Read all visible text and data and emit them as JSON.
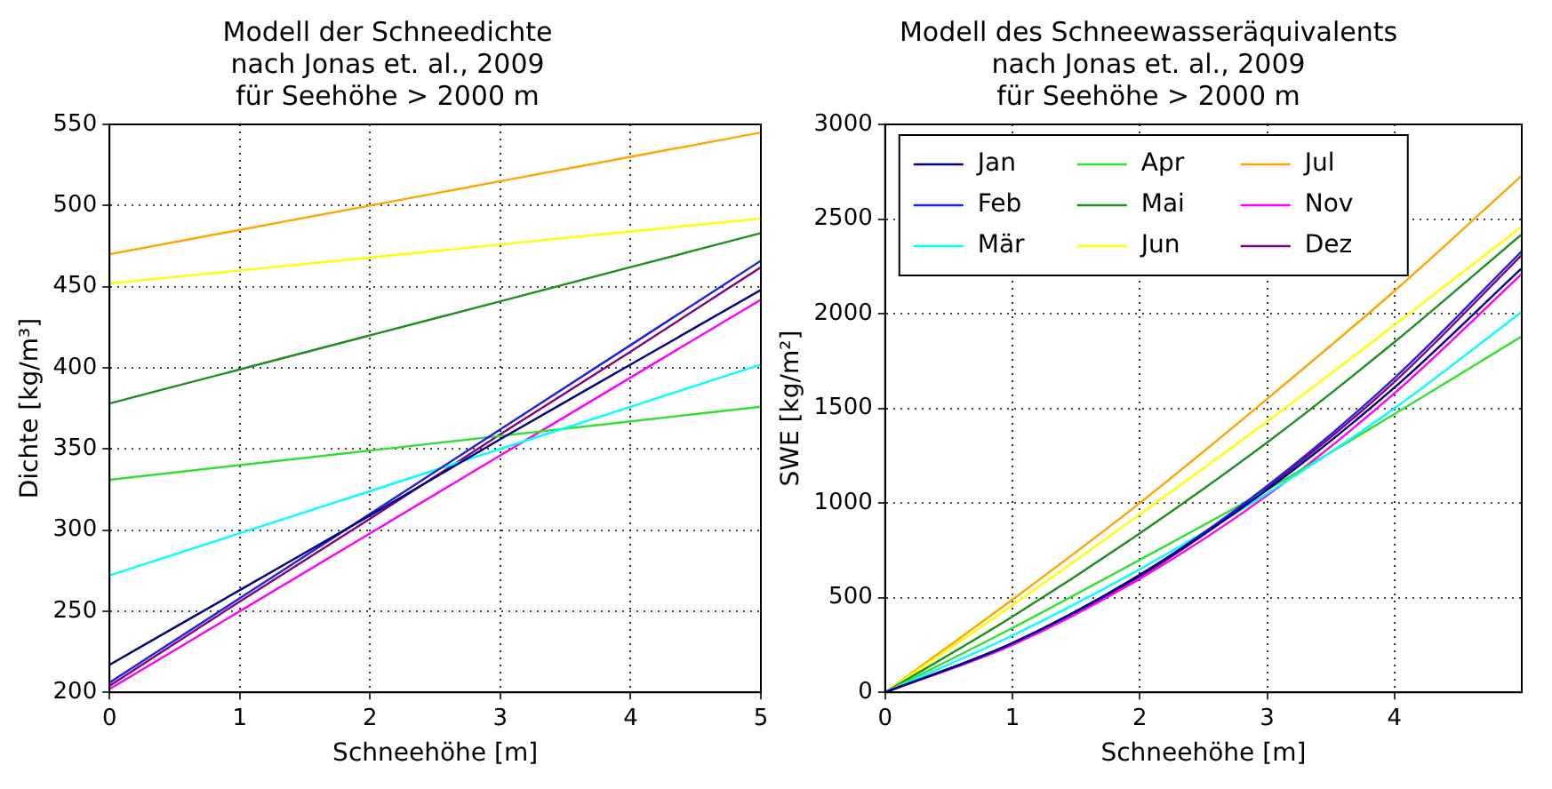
{
  "chart_data": [
    {
      "type": "line",
      "title": "Modell der Schneedichte\nnach Jonas et. al., 2009\nfür Seehöhe > 2000 m",
      "xlabel": "Schneehöhe [m]",
      "ylabel": "Dichte [kg/m³]",
      "x": [
        0,
        1,
        2,
        3,
        4,
        5
      ],
      "xlim": [
        0,
        5
      ],
      "xticks": [
        0,
        1,
        2,
        3,
        4,
        5
      ],
      "ylim": [
        200,
        550
      ],
      "yticks": [
        200,
        250,
        300,
        350,
        400,
        450,
        500,
        550
      ],
      "grid": true,
      "legend": false,
      "marker": "none",
      "line_style": "solid",
      "series": [
        {
          "color": "#000080",
          "values": [
            217,
            263,
            309,
            356,
            402,
            448
          ]
        },
        {
          "color": "#2020e0",
          "values": [
            206,
            258,
            310,
            362,
            414,
            466
          ]
        },
        {
          "color": "#00ffff",
          "values": [
            272,
            298,
            324,
            350,
            376,
            402
          ]
        },
        {
          "color": "#30e030",
          "values": [
            331,
            340,
            349,
            358,
            367,
            376
          ]
        },
        {
          "color": "#1e8c1e",
          "values": [
            378,
            399,
            420,
            441,
            462,
            483
          ]
        },
        {
          "color": "#ffff00",
          "values": [
            452,
            460,
            468,
            476,
            484,
            492
          ]
        },
        {
          "color": "#ffa500",
          "values": [
            470,
            485,
            500,
            515,
            530,
            545
          ]
        },
        {
          "color": "#ff00ff",
          "values": [
            202,
            250,
            298,
            346,
            394,
            442
          ]
        },
        {
          "color": "#800080",
          "values": [
            204,
            256,
            307,
            359,
            410,
            462
          ]
        }
      ]
    },
    {
      "type": "line",
      "title": "Modell des Schneewasseräquivalents\nnach Jonas et. al., 2009\nfür Seehöhe > 2000 m",
      "xlabel": "Schneehöhe [m]",
      "ylabel": "SWE [kg/m²]",
      "x": [
        0,
        1,
        2,
        3,
        4,
        5
      ],
      "xlim": [
        0,
        5
      ],
      "xticks": [
        0,
        1,
        2,
        3,
        4
      ],
      "ylim": [
        0,
        3000
      ],
      "yticks": [
        0,
        500,
        1000,
        1500,
        2000,
        2500,
        3000
      ],
      "grid": true,
      "legend": "top left",
      "marker": "none",
      "line_style": "solid",
      "series": [
        {
          "name": "Jan",
          "color": "#000080",
          "values": [
            0,
            260,
            620,
            1070,
            1610,
            2240
          ]
        },
        {
          "name": "Feb",
          "color": "#2020e0",
          "values": [
            0,
            260,
            620,
            1090,
            1660,
            2330
          ]
        },
        {
          "name": "Mär",
          "color": "#00ffff",
          "values": [
            0,
            300,
            650,
            1050,
            1500,
            2010
          ]
        },
        {
          "name": "Apr",
          "color": "#30e030",
          "values": [
            0,
            340,
            700,
            1070,
            1470,
            1880
          ]
        },
        {
          "name": "Mai",
          "color": "#1e8c1e",
          "values": [
            0,
            400,
            840,
            1320,
            1850,
            2420
          ]
        },
        {
          "name": "Jun",
          "color": "#ffff00",
          "values": [
            0,
            460,
            940,
            1430,
            1940,
            2460
          ]
        },
        {
          "name": "Jul",
          "color": "#ffa500",
          "values": [
            0,
            490,
            1000,
            1550,
            2120,
            2730
          ]
        },
        {
          "name": "Nov",
          "color": "#ff00ff",
          "values": [
            0,
            250,
            600,
            1040,
            1580,
            2210
          ]
        },
        {
          "name": "Dez",
          "color": "#800080",
          "values": [
            0,
            260,
            610,
            1080,
            1640,
            2310
          ]
        }
      ]
    }
  ]
}
